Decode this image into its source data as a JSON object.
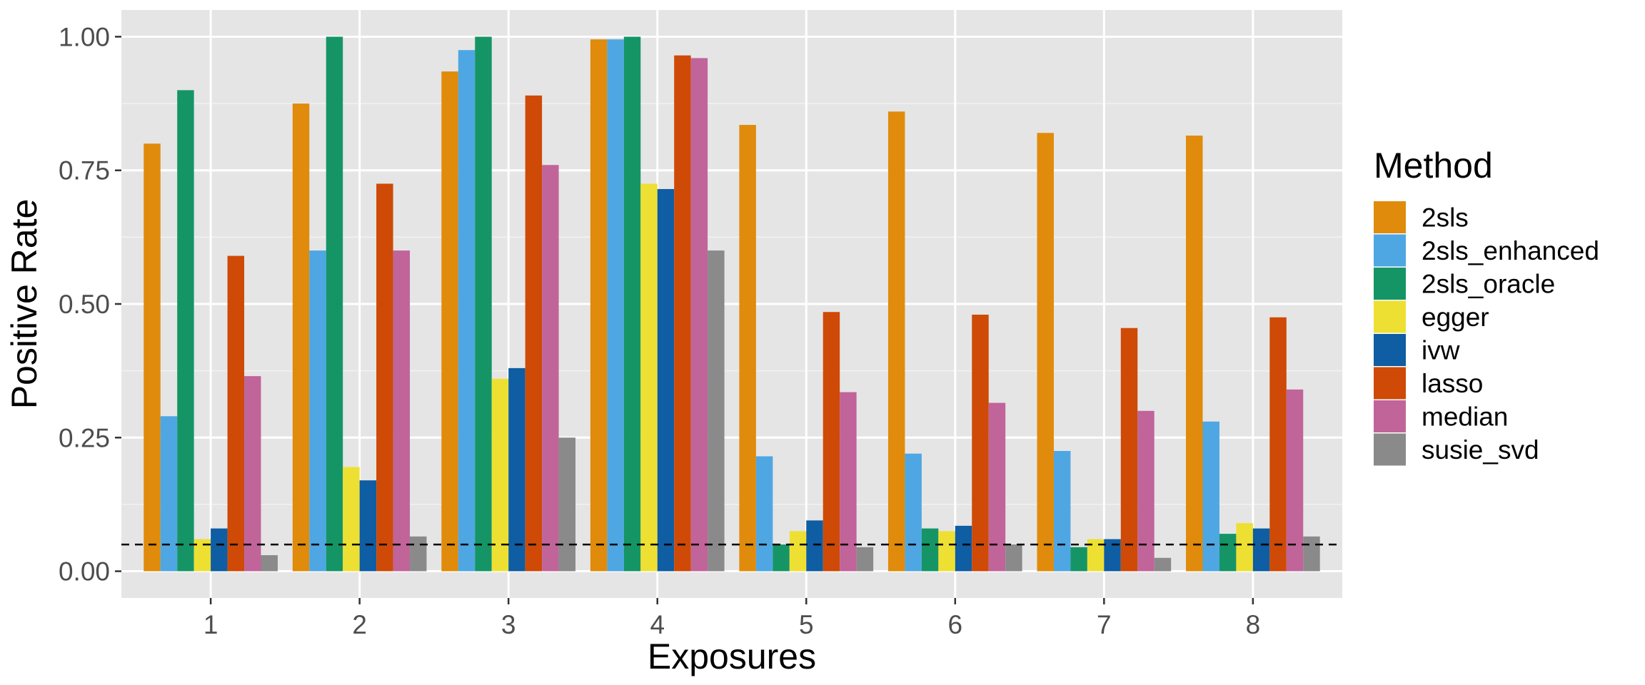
{
  "chart_data": {
    "type": "bar",
    "title": "",
    "xlabel": "Exposures",
    "ylabel": "Positive Rate",
    "ylim": [
      -0.05,
      1.05
    ],
    "y_ticks": [
      "0.00",
      "0.25",
      "0.50",
      "0.75",
      "1.00"
    ],
    "y_tick_values": [
      0,
      0.25,
      0.5,
      0.75,
      1.0
    ],
    "categories": [
      "1",
      "2",
      "3",
      "4",
      "5",
      "6",
      "7",
      "8"
    ],
    "reference_line": 0.05,
    "grid": true,
    "legend_title": "Method",
    "legend_position": "right",
    "series": [
      {
        "name": "2sls",
        "color": "#E08B0B",
        "values": [
          0.8,
          0.875,
          0.935,
          0.995,
          0.835,
          0.86,
          0.82,
          0.815
        ]
      },
      {
        "name": "2sls_enhanced",
        "color": "#4EA7E3",
        "values": [
          0.29,
          0.6,
          0.975,
          0.995,
          0.215,
          0.22,
          0.225,
          0.28
        ]
      },
      {
        "name": "2sls_oracle",
        "color": "#159566",
        "values": [
          0.9,
          1.0,
          1.0,
          1.0,
          0.05,
          0.08,
          0.045,
          0.07
        ]
      },
      {
        "name": "egger",
        "color": "#EEE033",
        "values": [
          0.06,
          0.195,
          0.36,
          0.725,
          0.075,
          0.075,
          0.06,
          0.09
        ]
      },
      {
        "name": "ivw",
        "color": "#0F5DA2",
        "values": [
          0.08,
          0.17,
          0.38,
          0.715,
          0.095,
          0.085,
          0.06,
          0.08
        ]
      },
      {
        "name": "lasso",
        "color": "#CE4A06",
        "values": [
          0.59,
          0.725,
          0.89,
          0.965,
          0.485,
          0.48,
          0.455,
          0.475
        ]
      },
      {
        "name": "median",
        "color": "#C1649A",
        "values": [
          0.365,
          0.6,
          0.76,
          0.96,
          0.335,
          0.315,
          0.3,
          0.34
        ]
      },
      {
        "name": "susie_svd",
        "color": "#8A8A8A",
        "values": [
          0.03,
          0.065,
          0.25,
          0.6,
          0.045,
          0.05,
          0.025,
          0.065
        ]
      }
    ]
  }
}
